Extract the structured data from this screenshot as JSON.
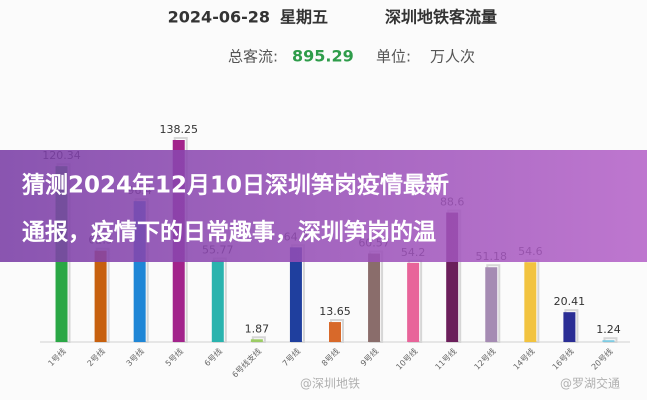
{
  "chart_data": {
    "type": "bar",
    "title_date": "2024-06-28",
    "title_weekday": "星期五",
    "title": "深圳地铁客流量",
    "total_label": "总客流:",
    "total": 895.29,
    "unit_label": "单位:",
    "unit": "万人次",
    "categories": [
      "1号线",
      "2号线",
      "3号线",
      "5号线",
      "6号线",
      "6号线支线",
      "7号线",
      "8号线",
      "9号线",
      "10号线",
      "11号线",
      "12号线",
      "14号线",
      "16号线",
      "20号线"
    ],
    "values": [
      120.34,
      62.5,
      96.4,
      138.25,
      55.77,
      1.87,
      64.8,
      13.65,
      60.57,
      54.2,
      88.6,
      51.18,
      54.6,
      20.41,
      1.24
    ],
    "colors": [
      "#2aa745",
      "#c7600e",
      "#1f86d6",
      "#a2238b",
      "#2ab3ae",
      "#9ccc65",
      "#1f3f9e",
      "#d8692a",
      "#8a6d6b",
      "#e8649a",
      "#6b1f5b",
      "#a58bb3",
      "#f2c33f",
      "#2b2e95",
      "#7ecbe2"
    ]
  },
  "banner": {
    "lines": [
      "猜测2024年12月10日深圳笋岗疫情最新",
      "通报，疫情下的日常趣事，深圳笋岗的温"
    ]
  },
  "watermarks": [
    "@深圳地铁",
    "@罗湖交通"
  ]
}
